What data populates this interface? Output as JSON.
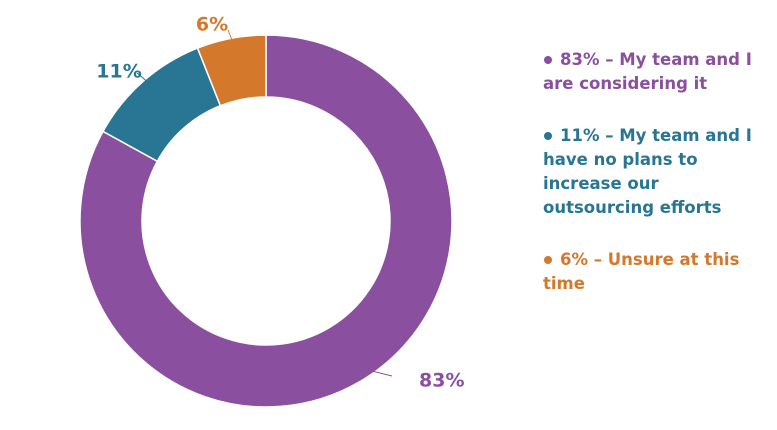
{
  "chart_data": {
    "type": "pie",
    "donut": true,
    "title": "",
    "categories": [
      "My team and I are considering it",
      "My team and I have no plans to increase our outsourcing efforts",
      "Unsure at this time"
    ],
    "values": [
      83,
      11,
      6
    ],
    "unit": "%",
    "slice_labels": [
      "83%",
      "11%",
      "6%"
    ],
    "colors": [
      "#8a4f9e",
      "#287594",
      "#d4782b"
    ],
    "legend_position": "right"
  },
  "legend": {
    "items": [
      {
        "text": "83% – My team and I are considering it",
        "color": "#8a4f9e"
      },
      {
        "text": "11% – My team and I have no plans to increase our outsourcing efforts",
        "color": "#287594"
      },
      {
        "text": "6% – Unsure at this time",
        "color": "#d4782b"
      }
    ]
  }
}
